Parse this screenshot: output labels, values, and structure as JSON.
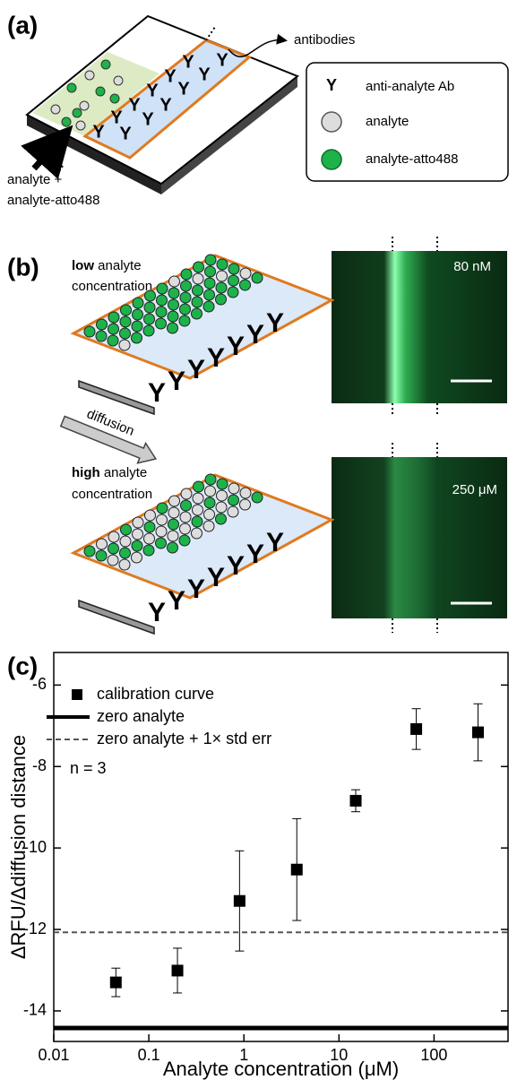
{
  "panel_a": {
    "label": "(a)",
    "antibodies": "antibodies",
    "inlet": [
      "analyte +",
      "analyte-atto488"
    ],
    "legend": {
      "symbol": "Y",
      "items": [
        "anti-analyte Ab",
        "analyte",
        "analyte-atto488"
      ]
    }
  },
  "panel_b": {
    "label": "(b)",
    "diffusion": "diffusion",
    "low": {
      "emphasis": "low",
      "rest": "analyte",
      "line2": "concentration",
      "concentration": "80 nM"
    },
    "high": {
      "emphasis": "high",
      "rest": "analyte",
      "line2": "concentration",
      "concentration": "250 μM"
    }
  },
  "chart_data": {
    "type": "scatter",
    "label": "(c)",
    "xlabel": "Analyte concentration (μM)",
    "ylabel": "ΔRFU/Δdiffusion distance",
    "xscale": "log",
    "xlim": [
      0.01,
      600
    ],
    "ylim": [
      -14.75,
      -5.2
    ],
    "xticks": [
      0.01,
      0.1,
      1,
      10,
      100
    ],
    "yticks": [
      -6,
      -8,
      -10,
      -12,
      -14
    ],
    "annotation": "n = 3",
    "series": [
      {
        "name": "calibration curve",
        "color": "#000000",
        "x": [
          0.045,
          0.2,
          0.9,
          3.6,
          15,
          65,
          290
        ],
        "values": [
          -13.3,
          -13.01,
          -11.3,
          -10.53,
          -8.84,
          -7.08,
          -7.16
        ],
        "errors": [
          0.35,
          0.55,
          1.23,
          1.25,
          0.27,
          0.5,
          0.7
        ]
      }
    ],
    "reference_lines": [
      {
        "name": "zero analyte",
        "value": -14.42,
        "style": "solid",
        "color": "#000000"
      },
      {
        "name": "zero analyte + 1× std err",
        "value": -12.07,
        "style": "dashed",
        "color": "#555555"
      }
    ]
  }
}
